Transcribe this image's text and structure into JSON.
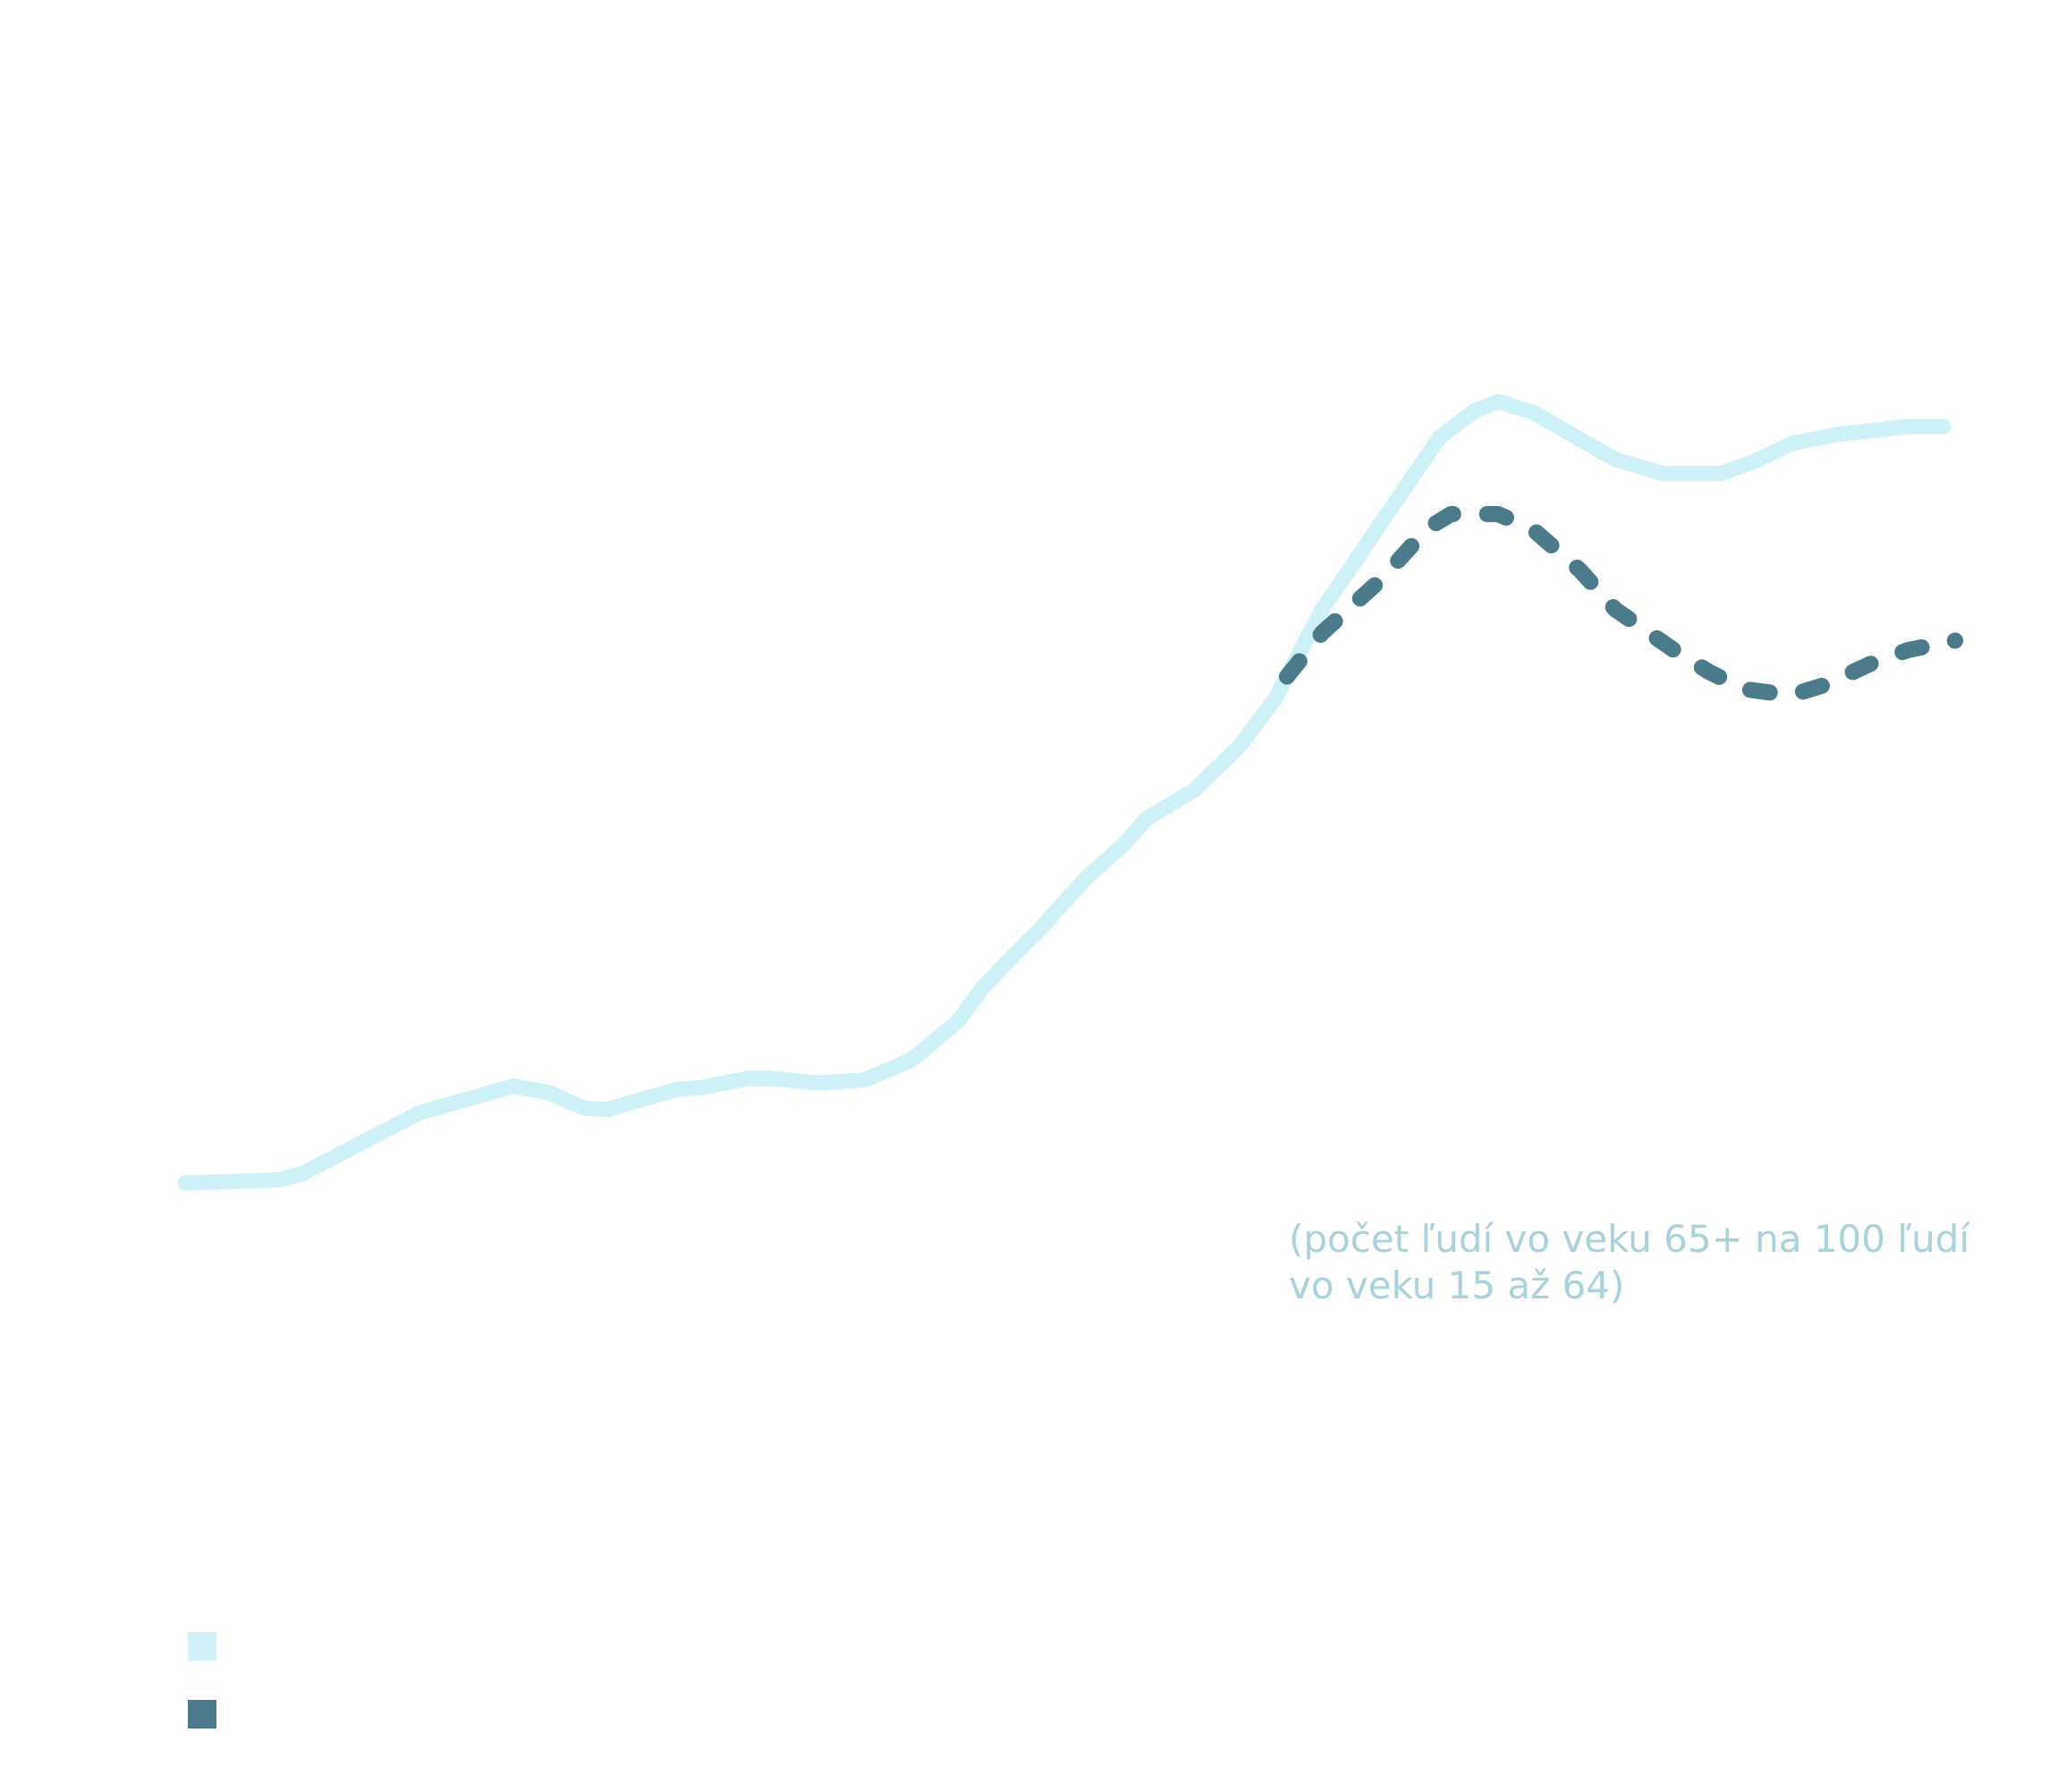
{
  "chart_data": {
    "type": "line",
    "title": "",
    "xlabel": "",
    "ylabel": "",
    "annotation": [
      "(počet ľudí vo veku 65+ na 100 ľudí",
      "vo veku 15 až 64)"
    ],
    "xlim": [
      1950,
      2101
    ],
    "ylim": [
      12,
      62
    ],
    "grid": false,
    "legend": {
      "placement": "bottom-left",
      "entries": [
        "",
        ""
      ]
    },
    "series": [
      {
        "name": "",
        "color": "#cdf1f6",
        "style": "solid",
        "x": [
          1950,
          1958,
          1960,
          1970,
          1978,
          1981,
          1984,
          1986,
          1992,
          1994,
          1998,
          2000,
          2004,
          2008,
          2012,
          2016,
          2018,
          2021,
          2023,
          2025,
          2027,
          2030,
          2032,
          2036,
          2040,
          2043,
          2047,
          2057,
          2060,
          2062,
          2065,
          2072,
          2076,
          2081,
          2084,
          2087,
          2091,
          2097,
          2100
        ],
        "y": [
          12.0,
          12.2,
          12.6,
          16.5,
          18.2,
          17.8,
          16.8,
          16.7,
          18.0,
          18.1,
          18.7,
          18.7,
          18.4,
          18.6,
          19.9,
          22.4,
          24.5,
          26.8,
          28.3,
          30.0,
          31.6,
          33.6,
          35.3,
          37.1,
          40.0,
          43.0,
          48.7,
          59.7,
          61.4,
          62.0,
          61.3,
          58.3,
          57.4,
          57.4,
          58.2,
          59.3,
          59.9,
          60.4,
          60.4
        ]
      },
      {
        "name": "",
        "color": "#4b7a8b",
        "style": "dashed",
        "x": [
          2044,
          2047,
          2052,
          2056,
          2058,
          2062,
          2065,
          2069,
          2072,
          2077,
          2080,
          2083,
          2087,
          2090,
          2094,
          2097,
          2101
        ],
        "y": [
          44.4,
          47.2,
          50.6,
          53.9,
          54.8,
          54.8,
          53.8,
          51.2,
          48.7,
          46.1,
          44.7,
          43.6,
          43.2,
          43.9,
          45.3,
          46.1,
          46.7
        ]
      }
    ]
  }
}
